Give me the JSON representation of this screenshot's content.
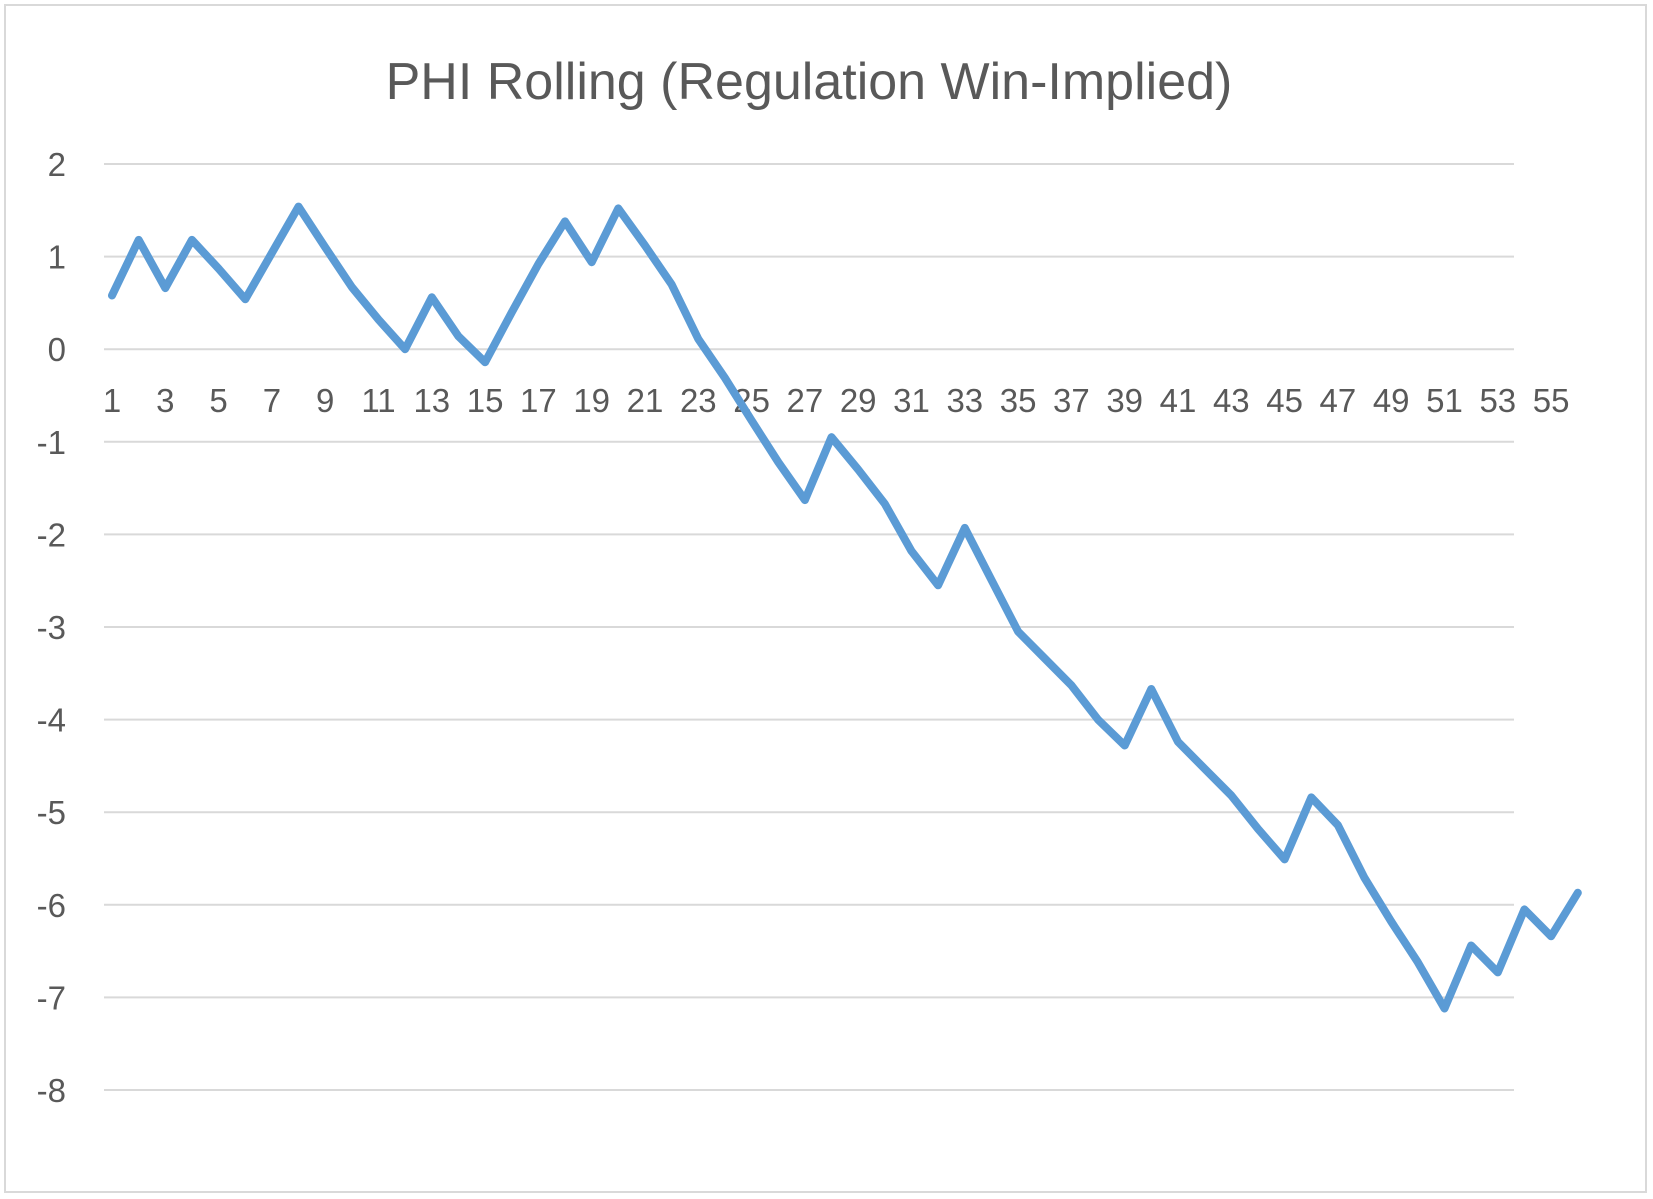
{
  "chart_data": {
    "type": "line",
    "title": "PHI Rolling (Regulation Win-Implied)",
    "xlabel": "",
    "ylabel": "",
    "ylim": [
      -8,
      2
    ],
    "yticks": [
      2,
      1,
      0,
      -1,
      -2,
      -3,
      -4,
      -5,
      -6,
      -7,
      -8
    ],
    "yticklabels": [
      "2",
      "1",
      "0",
      "-1",
      "-2",
      "-3",
      "-4",
      "-5",
      "-6",
      "-7",
      "-8"
    ],
    "xticklabels": [
      "1",
      "3",
      "5",
      "7",
      "9",
      "11",
      "13",
      "15",
      "17",
      "19",
      "21",
      "23",
      "25",
      "27",
      "29",
      "31",
      "33",
      "35",
      "37",
      "39",
      "41",
      "43",
      "45",
      "47",
      "49",
      "51",
      "53",
      "55"
    ],
    "xtick_positions": [
      1,
      3,
      5,
      7,
      9,
      11,
      13,
      15,
      17,
      19,
      21,
      23,
      25,
      27,
      29,
      31,
      33,
      35,
      37,
      39,
      41,
      43,
      45,
      47,
      49,
      51,
      53,
      55
    ],
    "grid": true,
    "legend": "none",
    "color": "#5b9bd5",
    "x": [
      1,
      2,
      3,
      4,
      5,
      6,
      7,
      8,
      9,
      10,
      11,
      12,
      13,
      14,
      15,
      16,
      17,
      18,
      19,
      20,
      21,
      22,
      23,
      24,
      25,
      26,
      27,
      28,
      29,
      30,
      31,
      32,
      33,
      34,
      35,
      36,
      37,
      38,
      39,
      40,
      41,
      42,
      43,
      44,
      45,
      46,
      47,
      48,
      49,
      50,
      51,
      52,
      53,
      54,
      55,
      56
    ],
    "series": [
      {
        "values": [
          0.58,
          1.18,
          0.66,
          1.18,
          0.87,
          0.54,
          1.04,
          1.54,
          1.1,
          0.67,
          0.32,
          0.0,
          0.56,
          0.14,
          -0.14,
          0.4,
          0.92,
          1.38,
          0.94,
          1.52,
          1.12,
          0.7,
          0.11,
          -0.31,
          -0.77,
          -1.22,
          -1.63,
          -0.95,
          -1.3,
          -1.67,
          -2.18,
          -2.55,
          -1.93,
          -2.49,
          -3.05,
          -3.34,
          -3.63,
          -4.0,
          -4.28,
          -3.67,
          -4.24,
          -4.53,
          -4.82,
          -5.18,
          -5.51,
          -4.84,
          -5.14,
          -5.71,
          -6.18,
          -6.62,
          -7.12,
          -6.44,
          -6.73,
          -6.05,
          -6.34,
          -5.87
        ]
      }
    ]
  }
}
